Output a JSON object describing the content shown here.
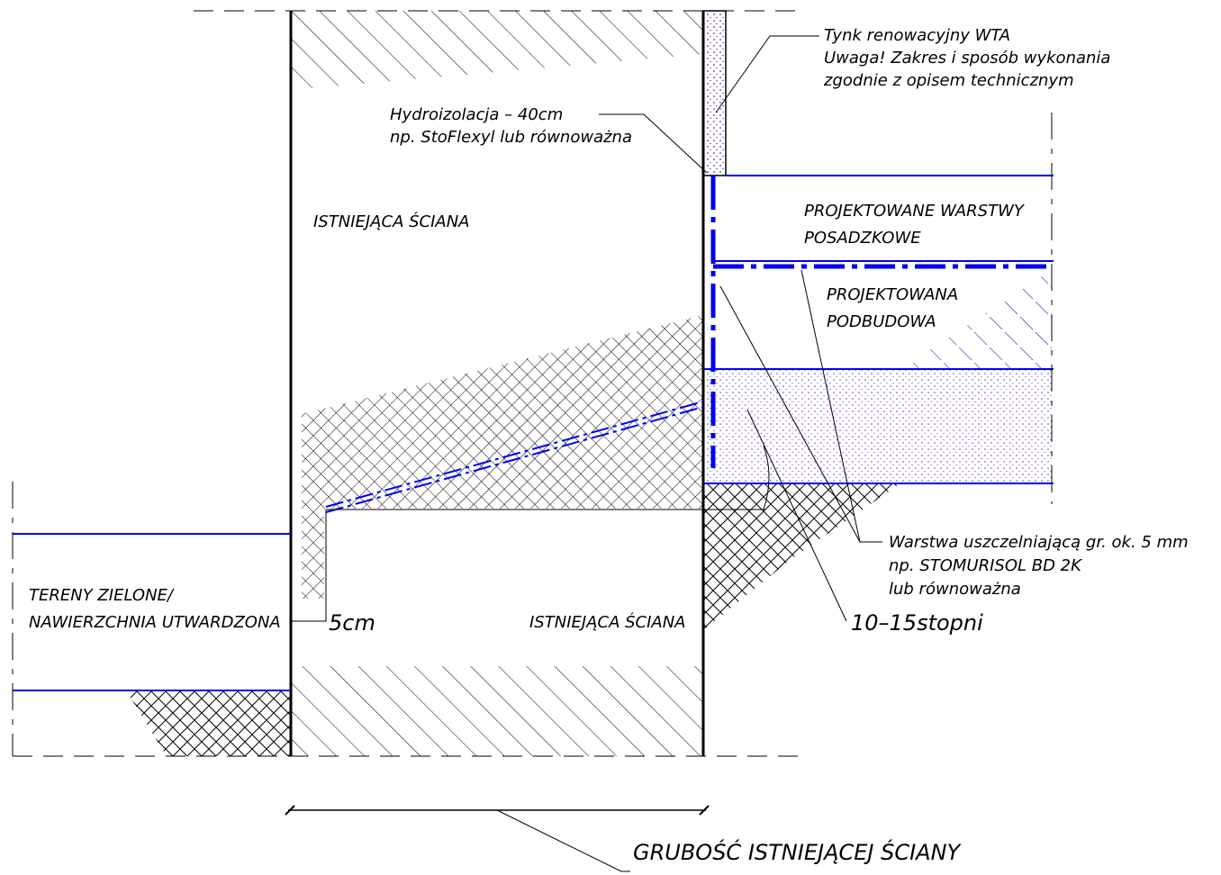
{
  "notes": {
    "plaster": [
      "Tynk renowacyjny WTA",
      "Uwaga! Zakres i sposób wykonania",
      "zgodnie z opisem technicznym"
    ],
    "waterproofing": [
      "Hydroizolacja – 40cm",
      "np. StoFlexyl lub równoważna"
    ],
    "wall_top": "ISTNIEJĄCA ŚCIANA",
    "floor_layers": [
      "PROJEKTOWANE WARSTWY",
      "POSADZKOWE"
    ],
    "subbase": [
      "PROJEKTOWANA",
      "PODBUDOWA"
    ],
    "sealing": [
      "Warstwa uszczelniającą gr. ok. 5 mm",
      "np. STOMURISOL BD 2K",
      "lub równoważna"
    ],
    "angle": "10–15stopni",
    "ground": [
      "TERENY ZIELONE/",
      "NAWIERZCHNIA UTWARDZONA"
    ],
    "offset": "5cm",
    "wall_bottom": "ISTNIEJĄCA ŚCIANA",
    "thickness": "GRUBOŚĆ ISTNIEJĄCEJ ŚCIANY"
  }
}
